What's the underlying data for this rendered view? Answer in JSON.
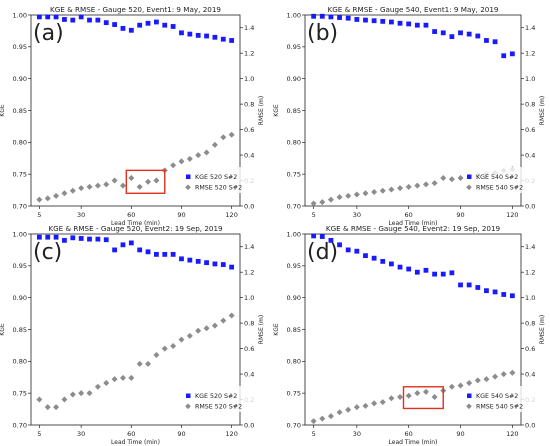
{
  "figure": {
    "panels": [
      {
        "letter": "(a)",
        "title": "KGE & RMSE - Gauge 520, Event1:    9 May, 2019",
        "kge_label": "KGE 520 S#2",
        "rmse_label": "RMSE 520 S#2"
      },
      {
        "letter": "(b)",
        "title": "KGE & RMSE - Gauge 540, Event1:    9 May, 2019",
        "kge_label": "KGE 540 S#2",
        "rmse_label": "RMSE 540 S#2"
      },
      {
        "letter": "(c)",
        "title": "KGE & RMSE - Gauge 520, Event2:   19 Sep, 2019",
        "kge_label": "KGE 520 S#2",
        "rmse_label": "RMSE 520 S#2"
      },
      {
        "letter": "(d)",
        "title": "KGE & RMSE - Gauge 540, Event2:   19 Sep, 2019",
        "kge_label": "KGE 540 S#2",
        "rmse_label": "RMSE 540 S#2"
      }
    ],
    "colors": {
      "kge": "#1a1aff",
      "rmse": "#8c8c8c",
      "highlight": "#e0301e"
    }
  },
  "chart_data": [
    {
      "type": "scatter",
      "title": "KGE & RMSE - Gauge 520, Event1:    9 May, 2019",
      "xlabel": "Lead Time (min)",
      "ylabel": "KGE",
      "y2label": "RMSE (m)",
      "xticks": [
        5,
        30,
        60,
        90,
        120
      ],
      "xlim": [
        0,
        125
      ],
      "yticks": [
        "0.70",
        "0.75",
        "0.80",
        "0.85",
        "0.90",
        "0.95",
        "1.00"
      ],
      "ylim": [
        0.7,
        1.0
      ],
      "y2ticks": [
        "0.0",
        "0.2",
        "0.4",
        "0.6",
        "0.8",
        "1.0",
        "1.2",
        "1.4"
      ],
      "y2lim": [
        0,
        1.5
      ],
      "legend": "bottom-right",
      "x": [
        5,
        10,
        15,
        20,
        25,
        30,
        35,
        40,
        45,
        50,
        55,
        60,
        65,
        70,
        75,
        80,
        85,
        90,
        95,
        100,
        105,
        110,
        115,
        120
      ],
      "series": [
        {
          "name": "KGE 520 S#2",
          "axis": "left",
          "marker": "square",
          "values": [
            0.997,
            0.997,
            0.997,
            0.993,
            0.992,
            0.997,
            0.992,
            0.992,
            0.988,
            0.985,
            0.979,
            0.976,
            0.984,
            0.987,
            0.989,
            0.984,
            0.982,
            0.972,
            0.97,
            0.968,
            0.967,
            0.965,
            0.962,
            0.96
          ]
        },
        {
          "name": "RMSE 520 S#2",
          "axis": "right",
          "marker": "diamond",
          "values": [
            0.05,
            0.06,
            0.08,
            0.1,
            0.12,
            0.14,
            0.15,
            0.16,
            0.17,
            0.2,
            0.16,
            0.22,
            0.15,
            0.19,
            0.2,
            0.28,
            0.32,
            0.35,
            0.37,
            0.4,
            0.42,
            0.48,
            0.54,
            0.56
          ]
        }
      ],
      "highlight": {
        "x": [
          57,
          80
        ],
        "y2": [
          0.1,
          0.28
        ]
      }
    },
    {
      "type": "scatter",
      "title": "KGE & RMSE - Gauge 540, Event1:    9 May, 2019",
      "xlabel": "Lead Time (min)",
      "ylabel": "KGE",
      "y2label": "RMSE (m)",
      "xticks": [
        5,
        30,
        60,
        90,
        120
      ],
      "xlim": [
        0,
        125
      ],
      "yticks": [
        "0.70",
        "0.75",
        "0.80",
        "0.85",
        "0.90",
        "0.95",
        "1.00"
      ],
      "ylim": [
        0.7,
        1.0
      ],
      "y2ticks": [
        "0.0",
        "0.2",
        "0.4",
        "0.6",
        "0.8",
        "1.0",
        "1.2",
        "1.4"
      ],
      "y2lim": [
        0,
        1.5
      ],
      "legend": "bottom-right",
      "x": [
        5,
        10,
        15,
        20,
        25,
        30,
        35,
        40,
        45,
        50,
        55,
        60,
        65,
        70,
        75,
        80,
        85,
        90,
        95,
        100,
        105,
        110,
        115,
        120
      ],
      "series": [
        {
          "name": "KGE 540 S#2",
          "axis": "left",
          "marker": "square",
          "values": [
            0.998,
            0.998,
            0.997,
            0.996,
            0.995,
            0.993,
            0.992,
            0.991,
            0.99,
            0.989,
            0.987,
            0.986,
            0.984,
            0.984,
            0.974,
            0.972,
            0.966,
            0.972,
            0.97,
            0.967,
            0.96,
            0.958,
            0.936,
            0.939
          ]
        },
        {
          "name": "RMSE 540 S#2",
          "axis": "right",
          "marker": "diamond",
          "values": [
            0.02,
            0.03,
            0.05,
            0.07,
            0.08,
            0.09,
            0.1,
            0.11,
            0.12,
            0.13,
            0.14,
            0.15,
            0.16,
            0.17,
            0.18,
            0.22,
            0.21,
            0.22,
            0.23,
            0.24,
            0.25,
            0.26,
            0.28,
            0.29
          ]
        }
      ]
    },
    {
      "type": "scatter",
      "title": "KGE & RMSE - Gauge 520, Event2:   19 Sep, 2019",
      "xlabel": "Lead Time (min)",
      "ylabel": "KGE",
      "y2label": "RMSE (m)",
      "xticks": [
        5,
        30,
        60,
        90,
        120
      ],
      "xlim": [
        0,
        125
      ],
      "yticks": [
        "0.70",
        "0.75",
        "0.80",
        "0.85",
        "0.90",
        "0.95",
        "1.00"
      ],
      "ylim": [
        0.7,
        1.0
      ],
      "y2ticks": [
        "0.0",
        "0.2",
        "0.4",
        "0.6",
        "0.8",
        "1.0",
        "1.2",
        "1.4"
      ],
      "y2lim": [
        0,
        1.5
      ],
      "legend": "bottom-right",
      "x": [
        5,
        10,
        15,
        20,
        25,
        30,
        35,
        40,
        45,
        50,
        55,
        60,
        65,
        70,
        75,
        80,
        85,
        90,
        95,
        100,
        105,
        110,
        115,
        120
      ],
      "series": [
        {
          "name": "KGE 520 S#2",
          "axis": "left",
          "marker": "square",
          "values": [
            0.995,
            0.995,
            0.995,
            0.99,
            0.994,
            0.993,
            0.992,
            0.992,
            0.991,
            0.975,
            0.983,
            0.986,
            0.975,
            0.972,
            0.968,
            0.968,
            0.968,
            0.961,
            0.959,
            0.957,
            0.955,
            0.953,
            0.952,
            0.948
          ]
        },
        {
          "name": "RMSE 520 S#2",
          "axis": "right",
          "marker": "diamond",
          "values": [
            0.2,
            0.14,
            0.14,
            0.2,
            0.24,
            0.25,
            0.25,
            0.3,
            0.33,
            0.36,
            0.37,
            0.37,
            0.48,
            0.48,
            0.55,
            0.6,
            0.62,
            0.67,
            0.7,
            0.74,
            0.76,
            0.78,
            0.82,
            0.86
          ]
        }
      ]
    },
    {
      "type": "scatter",
      "title": "KGE & RMSE - Gauge 540, Event2:   19 Sep, 2019",
      "xlabel": "Lead Time (min)",
      "ylabel": "KGE",
      "y2label": "RMSE (m)",
      "xticks": [
        5,
        30,
        60,
        90,
        120
      ],
      "xlim": [
        0,
        125
      ],
      "yticks": [
        "0.70",
        "0.75",
        "0.80",
        "0.85",
        "0.90",
        "0.95",
        "1.00"
      ],
      "ylim": [
        0.7,
        1.0
      ],
      "y2ticks": [
        "0.0",
        "0.2",
        "0.4",
        "0.6",
        "0.8",
        "1.0",
        "1.2",
        "1.4"
      ],
      "y2lim": [
        0,
        1.5
      ],
      "legend": "bottom-right",
      "x": [
        5,
        10,
        15,
        20,
        25,
        30,
        35,
        40,
        45,
        50,
        55,
        60,
        65,
        70,
        75,
        80,
        85,
        90,
        95,
        100,
        105,
        110,
        115,
        120
      ],
      "series": [
        {
          "name": "KGE 540 S#2",
          "axis": "left",
          "marker": "square",
          "values": [
            0.997,
            0.996,
            0.99,
            0.983,
            0.975,
            0.973,
            0.966,
            0.962,
            0.957,
            0.953,
            0.948,
            0.945,
            0.94,
            0.943,
            0.937,
            0.937,
            0.939,
            0.92,
            0.92,
            0.916,
            0.911,
            0.909,
            0.905,
            0.903
          ]
        },
        {
          "name": "RMSE 540 S#2",
          "axis": "right",
          "marker": "diamond",
          "values": [
            0.03,
            0.05,
            0.07,
            0.1,
            0.12,
            0.14,
            0.15,
            0.17,
            0.18,
            0.21,
            0.22,
            0.23,
            0.25,
            0.26,
            0.22,
            0.27,
            0.3,
            0.31,
            0.33,
            0.35,
            0.36,
            0.38,
            0.4,
            0.41
          ]
        }
      ],
      "highlight": {
        "x": [
          57,
          80
        ],
        "y2": [
          0.13,
          0.3
        ]
      }
    }
  ]
}
